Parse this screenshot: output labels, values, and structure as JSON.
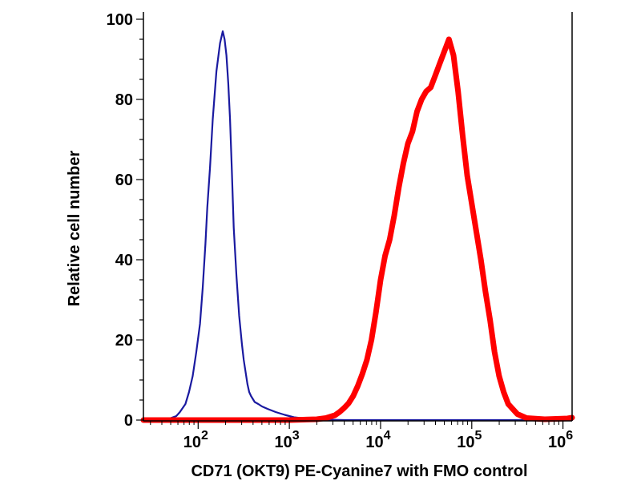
{
  "chart_data": {
    "type": "line",
    "title": "",
    "xlabel": "CD71 (OKT9) PE-Cyanine7 with FMO control",
    "ylabel": "Relative cell number",
    "x_scale": "log10",
    "xlim": [
      1.4,
      6.1
    ],
    "ylim": [
      0,
      100
    ],
    "y_ticks": [
      {
        "value": 0,
        "label": "0"
      },
      {
        "value": 20,
        "label": "20"
      },
      {
        "value": 40,
        "label": "40"
      },
      {
        "value": 60,
        "label": "60"
      },
      {
        "value": 80,
        "label": "80"
      },
      {
        "value": 100,
        "label": "100"
      }
    ],
    "x_ticks": [
      {
        "exponent": 2,
        "base": "10",
        "power": "2"
      },
      {
        "exponent": 3,
        "base": "10",
        "power": "3"
      },
      {
        "exponent": 4,
        "base": "10",
        "power": "4"
      },
      {
        "exponent": 5,
        "base": "10",
        "power": "5"
      },
      {
        "exponent": 6,
        "base": "10",
        "power": "6"
      }
    ],
    "grid": false,
    "series": [
      {
        "name": "FMO control",
        "color": "#1a1aa0",
        "x_log10": [
          1.4,
          1.62,
          1.7,
          1.76,
          1.8,
          1.86,
          1.9,
          1.94,
          1.98,
          2.02,
          2.05,
          2.08,
          2.1,
          2.13,
          2.16,
          2.2,
          2.24,
          2.27,
          2.29,
          2.31,
          2.33,
          2.35,
          2.37,
          2.39,
          2.42,
          2.45,
          2.48,
          2.5,
          2.52,
          2.54,
          2.56,
          2.58,
          2.62,
          2.66,
          2.7,
          2.76,
          2.85,
          2.95,
          3.05,
          3.2,
          3.4,
          3.6,
          6.1
        ],
        "y": [
          0,
          0,
          0.5,
          1,
          2,
          4,
          7,
          11,
          17,
          24,
          33,
          44,
          53,
          63,
          75,
          87,
          94,
          97,
          95,
          91,
          84,
          75,
          62,
          48,
          36,
          26,
          19,
          15,
          12,
          9,
          7,
          6,
          4.5,
          4,
          3.4,
          2.8,
          2,
          1.3,
          0.7,
          0.3,
          0.1,
          0,
          0
        ]
      },
      {
        "name": "CD71 (OKT9) PE-Cyanine7",
        "color": "#ff0000",
        "x_log10": [
          1.4,
          3.0,
          3.3,
          3.4,
          3.5,
          3.55,
          3.6,
          3.65,
          3.7,
          3.75,
          3.8,
          3.85,
          3.9,
          3.95,
          4.0,
          4.05,
          4.1,
          4.15,
          4.2,
          4.25,
          4.3,
          4.35,
          4.4,
          4.45,
          4.5,
          4.55,
          4.6,
          4.65,
          4.7,
          4.75,
          4.8,
          4.85,
          4.9,
          4.95,
          5.0,
          5.05,
          5.1,
          5.15,
          5.2,
          5.25,
          5.3,
          5.35,
          5.4,
          5.5,
          5.6,
          5.8,
          6.05,
          6.1
        ],
        "y": [
          0,
          0,
          0.2,
          0.5,
          1.2,
          2,
          3,
          4.2,
          6,
          8.5,
          11.5,
          15,
          20,
          27,
          35,
          41,
          45,
          51,
          58,
          64,
          69,
          72,
          77,
          80,
          82,
          83,
          86,
          89,
          92,
          95,
          91,
          82,
          71,
          61,
          54,
          47,
          40,
          32,
          25,
          17,
          11,
          7,
          4,
          1.5,
          0.5,
          0.2,
          0.4,
          0.6
        ]
      }
    ]
  }
}
